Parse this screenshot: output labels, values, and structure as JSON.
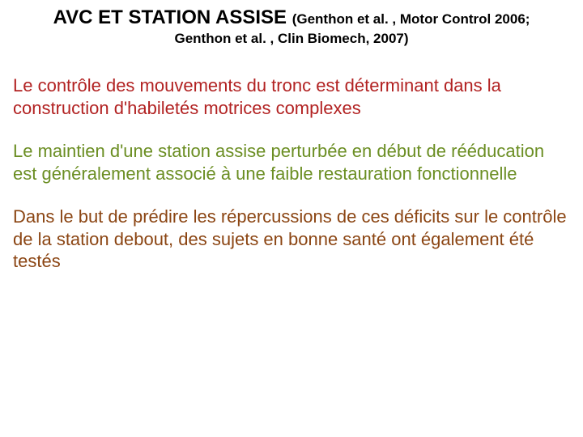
{
  "title": {
    "main": "AVC ET STATION ASSISE ",
    "cite_inline": "(Genthon et al. , Motor Control 2006;",
    "cite_line2": "Genthon et al. , Clin Biomech, 2007)"
  },
  "paragraphs": {
    "p1": "Le contrôle des mouvements du tronc est déterminant dans la construction d'habiletés motrices complexes",
    "p2": "Le maintien d'une station assise perturbée en début de rééducation est généralement associé à une faible restauration fonctionnelle",
    "p3": "Dans le but de prédire les répercussions de ces déficits sur le contrôle de la station debout, des sujets en bonne santé ont également été testés"
  },
  "colors": {
    "title": "#000000",
    "p1": "#b22222",
    "p2": "#6b8e23",
    "p3": "#8b4513",
    "background": "#ffffff"
  },
  "typography": {
    "title_main_fontsize": 24,
    "title_cite_fontsize": 17,
    "body_fontsize": 22,
    "font_family": "Arial"
  }
}
